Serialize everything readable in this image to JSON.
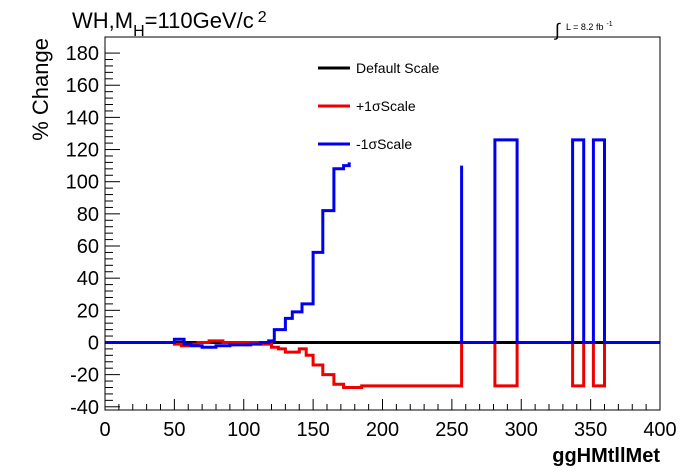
{
  "header": {
    "title_main": "WH,M",
    "title_sub": "H",
    "title_rest": "=110GeV/c",
    "title_sup": "2",
    "lumi_symbol": "∫",
    "lumi_text": "L = 8.2 fb",
    "lumi_sup": "-1"
  },
  "chart_data": {
    "type": "line",
    "xlabel": "ggHMtllMet",
    "ylabel": "% Change",
    "xlim": [
      0,
      400
    ],
    "ylim": [
      -42,
      190
    ],
    "x_ticks": [
      0,
      50,
      100,
      150,
      200,
      250,
      300,
      350,
      400
    ],
    "y_ticks": [
      -40,
      -20,
      0,
      20,
      40,
      60,
      80,
      100,
      120,
      140,
      160,
      180
    ],
    "grid": false,
    "legend_position": "top-center",
    "series": [
      {
        "name": "Default Scale",
        "color": "#000000",
        "points": [
          [
            0,
            0
          ],
          [
            400,
            0
          ]
        ]
      },
      {
        "name": "+1σScale",
        "color": "#ee0000",
        "points": [
          [
            0,
            0
          ],
          [
            50,
            0
          ],
          [
            50,
            -1
          ],
          [
            55,
            -1
          ],
          [
            55,
            -2
          ],
          [
            60,
            -2
          ],
          [
            60,
            -1
          ],
          [
            67,
            -1
          ],
          [
            67,
            0
          ],
          [
            75,
            0
          ],
          [
            75,
            1
          ],
          [
            85,
            1
          ],
          [
            85,
            0
          ],
          [
            112,
            0
          ],
          [
            112,
            -1
          ],
          [
            120,
            -1
          ],
          [
            120,
            -3
          ],
          [
            125,
            -3
          ],
          [
            125,
            -4
          ],
          [
            130,
            -4
          ],
          [
            130,
            -6
          ],
          [
            140,
            -6
          ],
          [
            140,
            -4
          ],
          [
            145,
            -4
          ],
          [
            145,
            -8
          ],
          [
            150,
            -8
          ],
          [
            150,
            -14
          ],
          [
            157,
            -14
          ],
          [
            157,
            -20
          ],
          [
            165,
            -20
          ],
          [
            165,
            -26
          ],
          [
            172,
            -26
          ],
          [
            172,
            -28
          ],
          [
            185,
            -28
          ],
          [
            185,
            -27
          ],
          [
            257,
            -27
          ],
          [
            257,
            0
          ],
          [
            281,
            0
          ],
          [
            281,
            -27
          ],
          [
            297,
            -27
          ],
          [
            297,
            0
          ],
          [
            337,
            0
          ],
          [
            337,
            -27
          ],
          [
            345,
            -27
          ],
          [
            345,
            0
          ],
          [
            352,
            0
          ],
          [
            352,
            -27
          ],
          [
            360,
            -27
          ],
          [
            360,
            0
          ],
          [
            400,
            0
          ]
        ]
      },
      {
        "name": "-1σScale",
        "color": "#0000ee",
        "points": [
          [
            0,
            0
          ],
          [
            50,
            0
          ],
          [
            50,
            2
          ],
          [
            57,
            2
          ],
          [
            57,
            -1
          ],
          [
            62,
            -1
          ],
          [
            62,
            -2
          ],
          [
            70,
            -2
          ],
          [
            70,
            -3
          ],
          [
            80,
            -3
          ],
          [
            80,
            -2
          ],
          [
            90,
            -2
          ],
          [
            90,
            -1.5
          ],
          [
            105,
            -1.5
          ],
          [
            105,
            -1
          ],
          [
            112,
            -1
          ],
          [
            112,
            0
          ],
          [
            118,
            0
          ],
          [
            118,
            1
          ],
          [
            122,
            1
          ],
          [
            122,
            8
          ],
          [
            130,
            8
          ],
          [
            130,
            15
          ],
          [
            135,
            15
          ],
          [
            135,
            19
          ],
          [
            142,
            19
          ],
          [
            142,
            24
          ],
          [
            150,
            24
          ],
          [
            150,
            56
          ],
          [
            157,
            56
          ],
          [
            157,
            82
          ],
          [
            165,
            82
          ],
          [
            165,
            108
          ],
          [
            172,
            108
          ],
          [
            172,
            110
          ],
          [
            176,
            110
          ],
          [
            176,
            112
          ]
        ]
      },
      {
        "name": "-1σScale",
        "color": "#0000ee",
        "points": [
          [
            257,
            110
          ],
          [
            257,
            0
          ],
          [
            281,
            0
          ],
          [
            281,
            126
          ],
          [
            297,
            126
          ],
          [
            297,
            0
          ],
          [
            337,
            0
          ],
          [
            337,
            126
          ],
          [
            345,
            126
          ],
          [
            345,
            0
          ],
          [
            352,
            0
          ],
          [
            352,
            126
          ],
          [
            360,
            126
          ],
          [
            360,
            0
          ],
          [
            400,
            0
          ]
        ]
      }
    ]
  }
}
